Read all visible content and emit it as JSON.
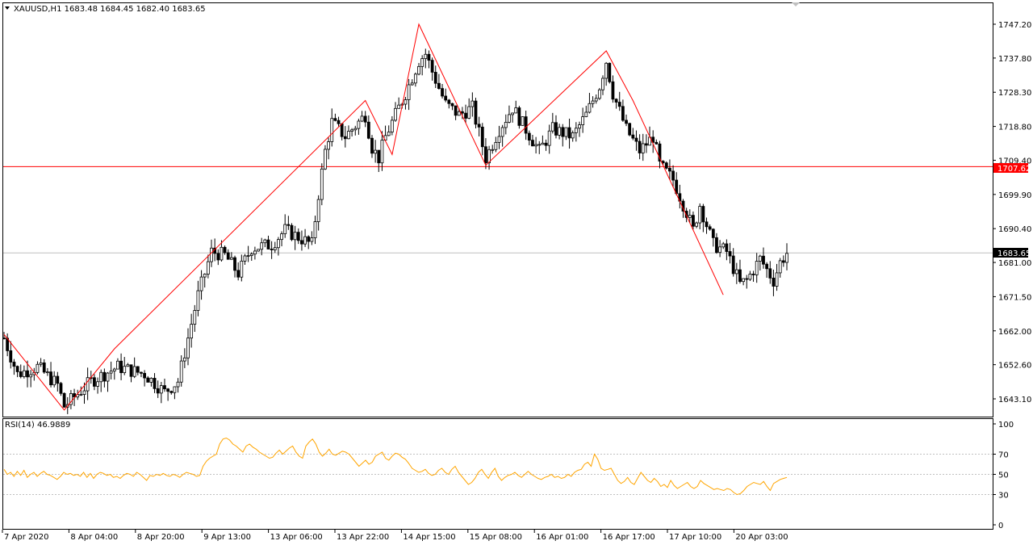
{
  "header": {
    "symbol_line": "XAUUSD,H1  1683.48 1684.45 1682.40 1683.65",
    "menu_icon": "triangle-down-icon"
  },
  "indicator": {
    "label": "RSI(14) 46.9889",
    "levels": [
      "100",
      "70",
      "50",
      "30",
      "0"
    ]
  },
  "price_axis": {
    "ticks": [
      "1747.20",
      "1737.80",
      "1728.30",
      "1718.80",
      "1709.40",
      "1699.90",
      "1690.40",
      "1681.00",
      "1671.50",
      "1662.00",
      "1652.60",
      "1643.10"
    ],
    "red_line_label": "1707.62",
    "current_price_label": "1683.65"
  },
  "time_axis": {
    "ticks": [
      "7 Apr 2020",
      "8 Apr 04:00",
      "8 Apr 20:00",
      "9 Apr 13:00",
      "13 Apr 06:00",
      "13 Apr 22:00",
      "14 Apr 15:00",
      "15 Apr 08:00",
      "16 Apr 01:00",
      "16 Apr 17:00",
      "17 Apr 10:00",
      "20 Apr 03:00"
    ]
  },
  "colors": {
    "zigzag": "#ff0000",
    "hline": "#ff0000",
    "rsi": "#ffa500",
    "candle": "#000000",
    "grid": "#c0c0c0"
  },
  "chart_data": [
    {
      "type": "candlestick",
      "title": "XAUUSD,H1",
      "ylim": [
        1638,
        1752
      ],
      "current_price": 1683.65,
      "horizontal_line": 1707.62,
      "close_path": [
        [
          0,
          1660
        ],
        [
          4,
          1650
        ],
        [
          10,
          1652
        ],
        [
          16,
          1647
        ],
        [
          18,
          1641
        ],
        [
          26,
          1648
        ],
        [
          34,
          1652
        ],
        [
          42,
          1650
        ],
        [
          48,
          1645
        ],
        [
          52,
          1648
        ],
        [
          58,
          1672
        ],
        [
          62,
          1684
        ],
        [
          66,
          1683
        ],
        [
          70,
          1678
        ],
        [
          74,
          1685
        ],
        [
          80,
          1686
        ],
        [
          84,
          1690
        ],
        [
          88,
          1688
        ],
        [
          92,
          1686
        ],
        [
          94,
          1700
        ],
        [
          96,
          1712
        ],
        [
          98,
          1720
        ],
        [
          102,
          1716
        ],
        [
          108,
          1722
        ],
        [
          110,
          1713
        ],
        [
          112,
          1710
        ],
        [
          114,
          1716
        ],
        [
          118,
          1724
        ],
        [
          120,
          1728
        ],
        [
          124,
          1737
        ],
        [
          126,
          1739
        ],
        [
          128,
          1734
        ],
        [
          132,
          1725
        ],
        [
          136,
          1722
        ],
        [
          140,
          1724
        ],
        [
          144,
          1710
        ],
        [
          148,
          1718
        ],
        [
          152,
          1724
        ],
        [
          156,
          1718
        ],
        [
          160,
          1712
        ],
        [
          164,
          1718
        ],
        [
          170,
          1716
        ],
        [
          174,
          1722
        ],
        [
          178,
          1730
        ],
        [
          180,
          1737
        ],
        [
          182,
          1728
        ],
        [
          186,
          1718
        ],
        [
          190,
          1712
        ],
        [
          194,
          1716
        ],
        [
          196,
          1708
        ],
        [
          200,
          1704
        ],
        [
          204,
          1695
        ],
        [
          206,
          1690
        ],
        [
          208,
          1697
        ],
        [
          212,
          1686
        ],
        [
          216,
          1684
        ],
        [
          220,
          1675
        ],
        [
          222,
          1676
        ],
        [
          226,
          1682
        ],
        [
          230,
          1676
        ],
        [
          232,
          1681
        ],
        [
          234,
          1683.65
        ]
      ],
      "bars": 235
    },
    {
      "type": "line",
      "title": "RSI(14)",
      "ylim": [
        0,
        100
      ],
      "levels": [
        70,
        50,
        30
      ],
      "series": [
        {
          "name": "RSI(14)",
          "values": [
            55,
            50,
            52,
            48,
            53,
            49,
            54,
            47,
            50,
            52,
            48,
            51,
            53,
            50,
            49,
            47,
            45,
            48,
            52,
            50,
            51,
            49,
            50,
            48,
            52,
            47,
            51,
            46,
            50,
            52,
            51,
            49,
            50,
            47,
            48,
            46,
            49,
            51,
            50,
            48,
            52,
            50,
            47,
            44,
            49,
            48,
            50,
            49,
            51,
            49,
            48,
            50,
            49,
            47,
            50,
            52,
            51,
            50,
            48,
            49,
            58,
            63,
            66,
            68,
            70,
            80,
            85,
            86,
            84,
            80,
            78,
            75,
            72,
            78,
            80,
            77,
            75,
            72,
            70,
            68,
            66,
            67,
            71,
            74,
            70,
            73,
            76,
            78,
            72,
            68,
            66,
            78,
            82,
            85,
            80,
            72,
            68,
            71,
            75,
            70,
            69,
            71,
            73,
            72,
            70,
            66,
            62,
            58,
            61,
            64,
            60,
            62,
            68,
            70,
            72,
            66,
            64,
            68,
            71,
            70,
            67,
            65,
            61,
            56,
            54,
            52,
            53,
            55,
            51,
            49,
            50,
            54,
            56,
            52,
            50,
            55,
            58,
            52,
            48,
            44,
            40,
            42,
            46,
            52,
            55,
            50,
            46,
            52,
            56,
            48,
            44,
            47,
            49,
            50,
            52,
            49,
            47,
            50,
            53,
            50,
            48,
            46,
            45,
            47,
            48,
            50,
            47,
            48,
            46,
            47,
            50,
            48,
            52,
            54,
            55,
            60,
            62,
            58,
            70,
            65,
            56,
            54,
            55,
            56,
            50,
            44,
            41,
            43,
            47,
            42,
            40,
            46,
            52,
            48,
            44,
            42,
            46,
            43,
            38,
            40,
            37,
            44,
            39,
            36,
            38,
            40,
            42,
            38,
            36,
            38,
            44,
            41,
            39,
            37,
            35,
            36,
            35,
            34,
            36,
            35,
            32,
            30,
            31,
            34,
            38,
            40,
            42,
            41,
            40,
            43,
            38,
            34,
            41,
            43,
            45,
            46,
            47
          ]
        }
      ]
    }
  ]
}
